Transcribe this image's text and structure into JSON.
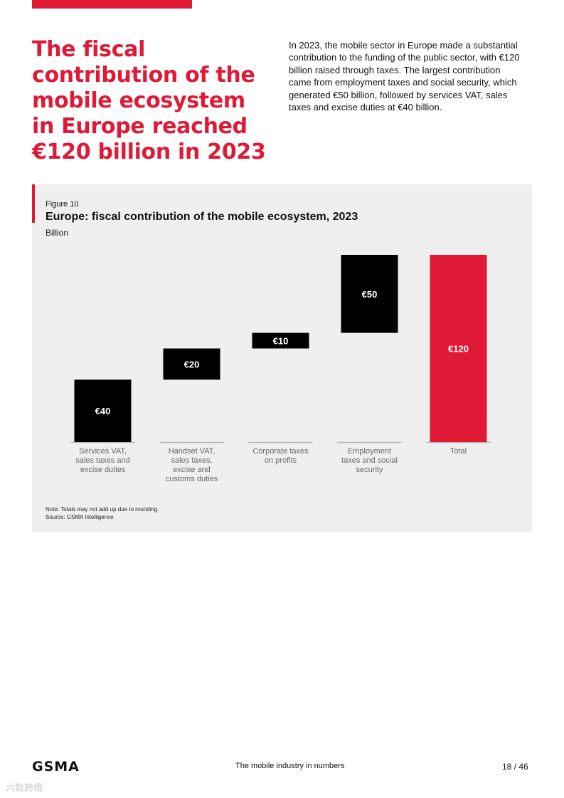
{
  "headline": "The fiscal contribution of the mobile ecosystem in Europe reached €120 billion in 2023",
  "intro": "In 2023, the mobile sector in Europe made a substantial contribution to the funding of the public sector, with €120 billion raised through taxes. The largest contribution came from employment taxes and social security, which generated €50 billion, followed by services VAT, sales taxes and excise duties at €40 billion.",
  "figure": {
    "label": "Figure 10",
    "title": "Europe: fiscal contribution of the mobile ecosystem, 2023",
    "unit": "Billion"
  },
  "chart_data": {
    "type": "bar",
    "subtype": "waterfall",
    "title": "Europe: fiscal contribution of the mobile ecosystem, 2023",
    "ylabel": "Billion",
    "categories": [
      [
        "Services VAT,",
        "sales taxes and",
        "excise duties"
      ],
      [
        "Handset VAT,",
        "sales taxes,",
        "excise and",
        "customs duties"
      ],
      [
        "Corporate taxes",
        "on profits"
      ],
      [
        "Employment",
        "taxes and social",
        "security"
      ],
      [
        "Total"
      ]
    ],
    "values": [
      40,
      20,
      10,
      50,
      120
    ],
    "data_labels": [
      "€40",
      "€20",
      "€10",
      "€50",
      "€120"
    ],
    "is_total": [
      false,
      false,
      false,
      false,
      true
    ],
    "ylim": [
      0,
      120
    ],
    "grid": false,
    "colors": {
      "component": "#000000",
      "total": "#e01a36",
      "baseline": "#b5b5b5",
      "label_text": "#ffffff",
      "category_text": "#666666"
    }
  },
  "note": {
    "line1": "Note: Totals may not add up due to rounding.",
    "line2": "Source: GSMA Intelligence"
  },
  "footer": {
    "logo": "GSMA",
    "center": "The mobile industry in numbers",
    "page": "18 / 46"
  },
  "watermark": "六数跨境",
  "colors": {
    "brand_red": "#e01a36",
    "panel_bg": "#efefef"
  }
}
